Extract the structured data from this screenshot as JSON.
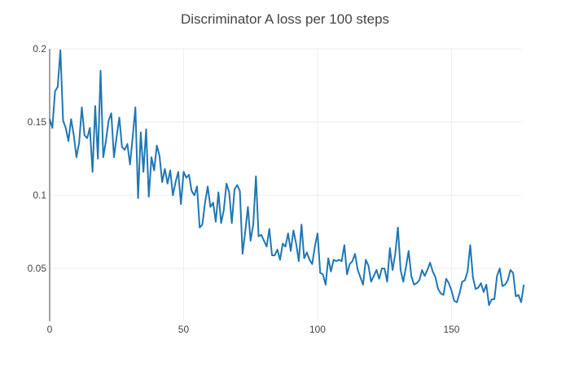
{
  "chart_data": {
    "type": "line",
    "title": "Discriminator A loss per 100 steps",
    "xlabel": "",
    "ylabel": "",
    "xlim": [
      0,
      176
    ],
    "ylim": [
      0.014,
      0.2
    ],
    "x_ticks": [
      0,
      50,
      100,
      150
    ],
    "y_ticks": [
      0.05,
      0.1,
      0.15,
      0.2
    ],
    "x_tick_labels": [
      "0",
      "50",
      "100",
      "150"
    ],
    "y_tick_labels": [
      "0.05",
      "0.1",
      "0.15",
      "0.2"
    ],
    "grid": true,
    "legend": false,
    "line_color": "#1f77b4",
    "series": [
      {
        "values": [
          0.152,
          0.146,
          0.171,
          0.174,
          0.199,
          0.151,
          0.146,
          0.137,
          0.152,
          0.141,
          0.126,
          0.136,
          0.16,
          0.141,
          0.139,
          0.146,
          0.116,
          0.161,
          0.125,
          0.185,
          0.126,
          0.137,
          0.151,
          0.156,
          0.126,
          0.14,
          0.153,
          0.133,
          0.131,
          0.135,
          0.121,
          0.14,
          0.16,
          0.098,
          0.143,
          0.116,
          0.145,
          0.099,
          0.126,
          0.117,
          0.134,
          0.127,
          0.109,
          0.118,
          0.108,
          0.117,
          0.1,
          0.109,
          0.116,
          0.094,
          0.116,
          0.112,
          0.114,
          0.103,
          0.1,
          0.106,
          0.078,
          0.08,
          0.095,
          0.106,
          0.092,
          0.095,
          0.082,
          0.102,
          0.081,
          0.09,
          0.108,
          0.102,
          0.081,
          0.104,
          0.107,
          0.103,
          0.06,
          0.075,
          0.092,
          0.069,
          0.08,
          0.113,
          0.072,
          0.073,
          0.069,
          0.065,
          0.077,
          0.059,
          0.059,
          0.063,
          0.056,
          0.067,
          0.065,
          0.074,
          0.062,
          0.076,
          0.067,
          0.055,
          0.08,
          0.057,
          0.061,
          0.056,
          0.053,
          0.065,
          0.074,
          0.047,
          0.046,
          0.039,
          0.057,
          0.048,
          0.056,
          0.055,
          0.056,
          0.055,
          0.066,
          0.046,
          0.053,
          0.055,
          0.06,
          0.049,
          0.044,
          0.039,
          0.056,
          0.052,
          0.041,
          0.045,
          0.049,
          0.043,
          0.05,
          0.05,
          0.041,
          0.064,
          0.049,
          0.06,
          0.078,
          0.049,
          0.041,
          0.051,
          0.062,
          0.045,
          0.039,
          0.04,
          0.042,
          0.049,
          0.045,
          0.049,
          0.054,
          0.048,
          0.044,
          0.036,
          0.033,
          0.032,
          0.043,
          0.04,
          0.035,
          0.028,
          0.027,
          0.033,
          0.041,
          0.042,
          0.048,
          0.066,
          0.044,
          0.036,
          0.037,
          0.04,
          0.034,
          0.039,
          0.025,
          0.029,
          0.029,
          0.045,
          0.05,
          0.038,
          0.039,
          0.042,
          0.049,
          0.047,
          0.031,
          0.032,
          0.027,
          0.039
        ]
      }
    ]
  }
}
